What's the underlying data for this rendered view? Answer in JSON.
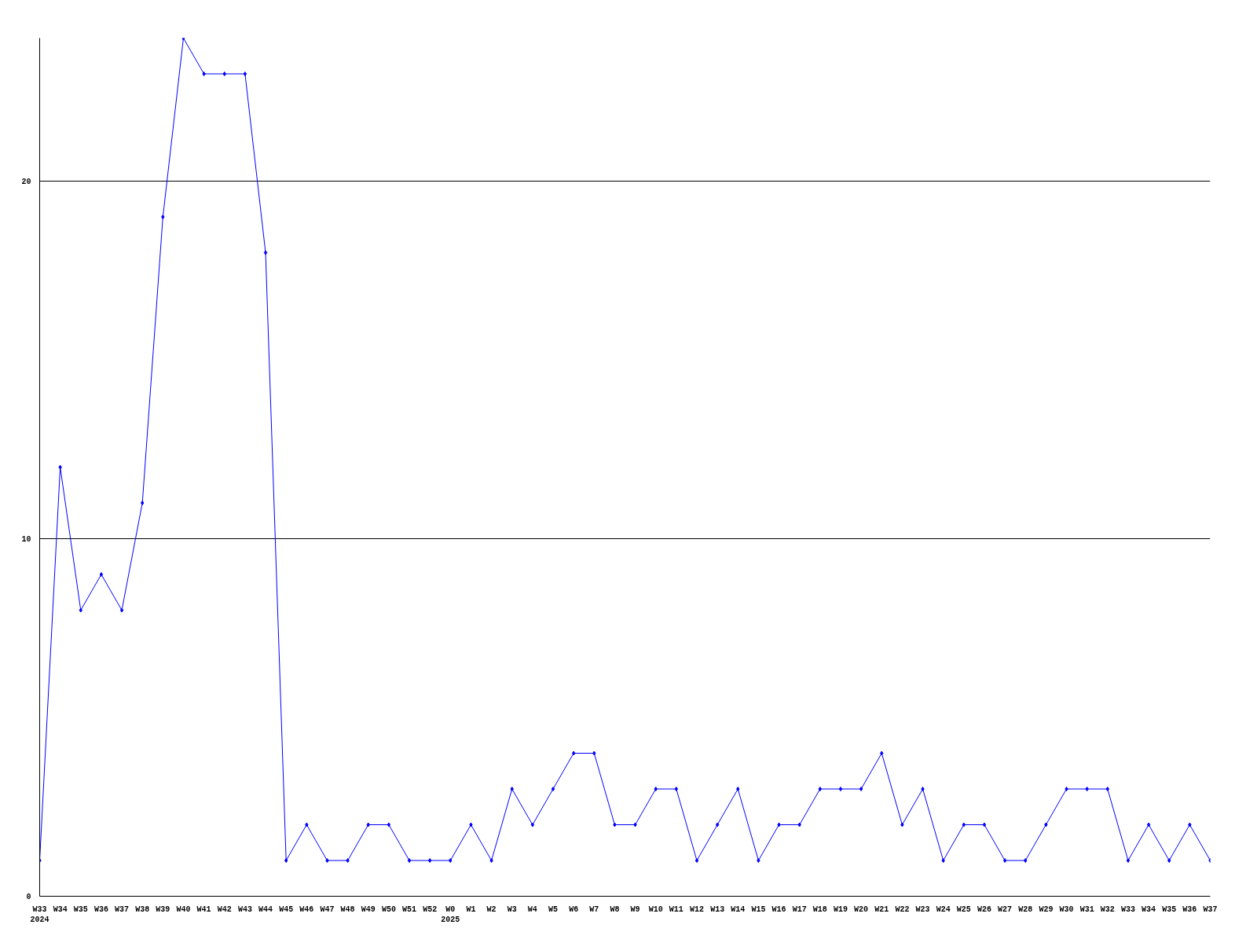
{
  "chart_data": {
    "type": "line",
    "categories": [
      "W33\n2024",
      "W34",
      "W35",
      "W36",
      "W37",
      "W38",
      "W39",
      "W40",
      "W41",
      "W42",
      "W43",
      "W44",
      "W45",
      "W46",
      "W47",
      "W48",
      "W49",
      "W50",
      "W51",
      "W52",
      "W0\n2025",
      "W1",
      "W2",
      "W3",
      "W4",
      "W5",
      "W6",
      "W7",
      "W8",
      "W9",
      "W10",
      "W11",
      "W12",
      "W13",
      "W14",
      "W15",
      "W16",
      "W17",
      "W18",
      "W19",
      "W20",
      "W21",
      "W22",
      "W23",
      "W24",
      "W25",
      "W26",
      "W27",
      "W28",
      "W29",
      "W30",
      "W31",
      "W32",
      "W33",
      "W34",
      "W35",
      "W36",
      "W37"
    ],
    "series": [
      {
        "color": "#0000ff",
        "values": [
          1,
          12,
          8,
          9,
          8,
          11,
          19,
          24,
          23,
          23,
          23,
          18,
          1,
          2,
          1,
          1,
          2,
          2,
          1,
          1,
          1,
          2,
          1,
          3,
          2,
          3,
          4,
          4,
          2,
          2,
          3,
          3,
          1,
          2,
          3,
          1,
          2,
          2,
          3,
          3,
          3,
          4,
          2,
          3,
          1,
          2,
          2,
          1,
          1,
          2,
          3,
          3,
          3,
          1,
          2,
          1,
          2,
          1
        ]
      }
    ],
    "ylim": [
      0,
      24
    ],
    "yticks": [
      0,
      10,
      20
    ],
    "grid": "y",
    "marker": "diamond",
    "line_style": "solid"
  }
}
